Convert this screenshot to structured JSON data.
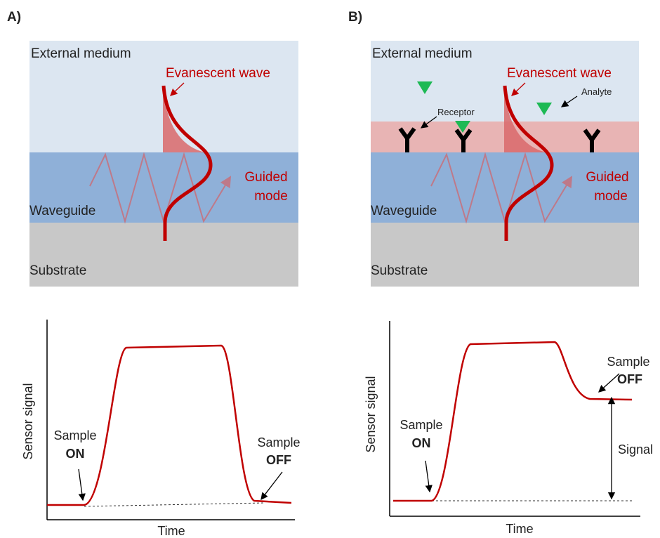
{
  "panels": [
    {
      "label": "A)",
      "diagram": {
        "external_medium": "External medium",
        "evanescent_wave": "Evanescent wave",
        "guided_mode": [
          "Guided",
          "mode"
        ],
        "waveguide": "Waveguide",
        "substrate": "Substrate"
      },
      "graph": {
        "y_label": "Sensor signal",
        "x_label": "Time",
        "sample_on": [
          "Sample",
          "ON"
        ],
        "sample_off": [
          "Sample",
          "OFF"
        ]
      }
    },
    {
      "label": "B)",
      "diagram": {
        "external_medium": "External medium",
        "evanescent_wave": "Evanescent wave",
        "guided_mode": [
          "Guided",
          "mode"
        ],
        "waveguide": "Waveguide",
        "substrate": "Substrate",
        "receptor": "Receptor",
        "analyte": "Analyte"
      },
      "graph": {
        "y_label": "Sensor signal",
        "x_label": "Time",
        "sample_on": [
          "Sample",
          "ON"
        ],
        "sample_off": [
          "Sample",
          "OFF"
        ],
        "signal": "Signal"
      }
    }
  ]
}
